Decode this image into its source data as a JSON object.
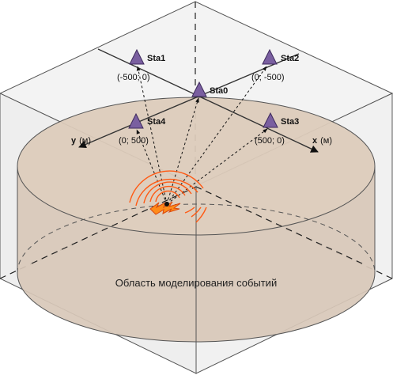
{
  "colors": {
    "station_fill": "#7a5fa0",
    "station_stroke": "#3e2a5c",
    "disk_fill": "#d8c8b8",
    "cube_face": "#f2f2f2",
    "cube_edge": "#555555",
    "wave": "#ff5a14",
    "source_fill": "#ff8c1a"
  },
  "stations": [
    {
      "name": "Sta0",
      "coord": ""
    },
    {
      "name": "Sta1",
      "coord": "(-500; 0)"
    },
    {
      "name": "Sta2",
      "coord": "(0; -500)"
    },
    {
      "name": "Sta3",
      "coord": "(500; 0)"
    },
    {
      "name": "Sta4",
      "coord": "(0; 500)"
    }
  ],
  "axes": {
    "x": {
      "name": "x",
      "unit": "(м)"
    },
    "y": {
      "name": "y",
      "unit": "(м)"
    }
  },
  "region_label": "Область моделирования событий",
  "icons": {
    "station": "triangle-marker-icon",
    "source": "seismic-event-icon"
  }
}
